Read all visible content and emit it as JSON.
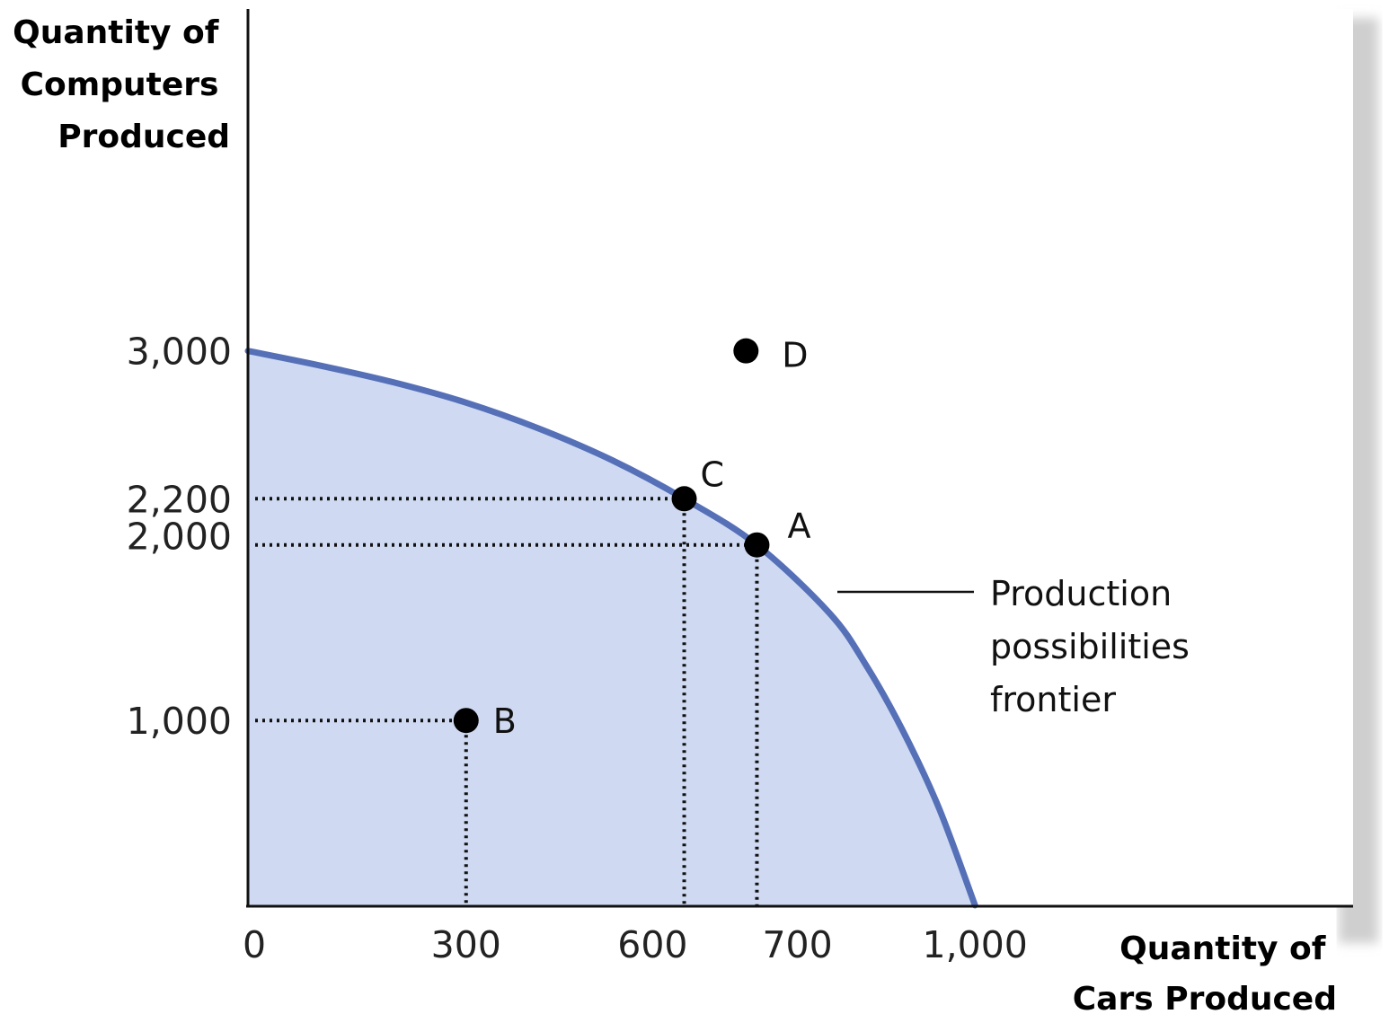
{
  "chart_data": {
    "type": "line",
    "ylabel": [
      "Quantity of",
      "Computers",
      "Produced"
    ],
    "xlabel": [
      "Quantity of",
      "Cars Produced"
    ],
    "x_ticks": [
      {
        "value": 0,
        "label": "0"
      },
      {
        "value": 300,
        "label": "300"
      },
      {
        "value": 600,
        "label": "600"
      },
      {
        "value": 700,
        "label": "700"
      },
      {
        "value": 1000,
        "label": "1,000"
      }
    ],
    "y_ticks": [
      {
        "value": 1000,
        "label": "1,000"
      },
      {
        "value": 2000,
        "label": "2,000"
      },
      {
        "value": 2200,
        "label": "2,200"
      },
      {
        "value": 3000,
        "label": "3,000"
      }
    ],
    "xlim": [
      0,
      1520
    ],
    "ylim": [
      0,
      4850
    ],
    "series": [
      {
        "name": "Production possibilities frontier",
        "label_lines": [
          "Production",
          "possibilities",
          "frontier"
        ],
        "color": "#5670b8",
        "fill": "#cfdaf2",
        "x": [
          0,
          100,
          200,
          300,
          400,
          500,
          600,
          700,
          800,
          850,
          900,
          950,
          1000
        ],
        "y": [
          3000,
          2920,
          2830,
          2720,
          2580,
          2410,
          2200,
          1950,
          1580,
          1300,
          950,
          530,
          0
        ]
      }
    ],
    "points": [
      {
        "label": "A",
        "x": 700,
        "y": 1950,
        "guides": true
      },
      {
        "label": "B",
        "x": 300,
        "y": 1000,
        "guides": true
      },
      {
        "label": "C",
        "x": 600,
        "y": 2200,
        "guides": true
      },
      {
        "label": "D",
        "x": 685,
        "y": 3000,
        "guides": false
      }
    ],
    "grid": false,
    "colors": {
      "axis": "#111111",
      "point": "#000000",
      "guide": "#111111"
    }
  }
}
